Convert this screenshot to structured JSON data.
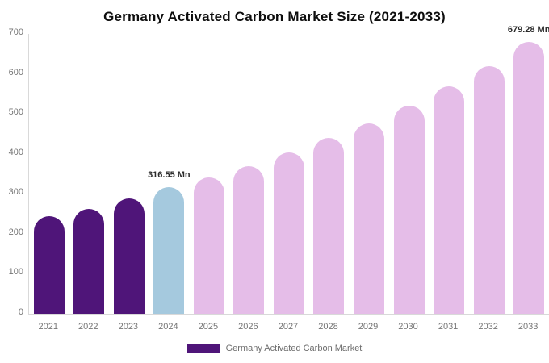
{
  "chart_data": {
    "type": "bar",
    "title": "Germany Activated Carbon Market Size (2021-2033)",
    "unit": "Mn",
    "xlabel": "",
    "ylabel": "",
    "ylim": [
      0,
      700
    ],
    "yticks": [
      0,
      100,
      200,
      300,
      400,
      500,
      600,
      700
    ],
    "grid": false,
    "categories": [
      "2021",
      "2022",
      "2023",
      "2024",
      "2025",
      "2026",
      "2027",
      "2028",
      "2029",
      "2030",
      "2031",
      "2032",
      "2033"
    ],
    "series": [
      {
        "name": "Germany Activated Carbon Market",
        "values": [
          244,
          263,
          288,
          316.55,
          340,
          370,
          404,
          439,
          477,
          521,
          568,
          619,
          679.28
        ]
      }
    ],
    "point_colors": [
      "#4f1579",
      "#4f1579",
      "#4f1579",
      "#a5c9de",
      "#e5bde8",
      "#e5bde8",
      "#e5bde8",
      "#e5bde8",
      "#e5bde8",
      "#e5bde8",
      "#e5bde8",
      "#e5bde8",
      "#e5bde8"
    ],
    "data_labels": [
      null,
      null,
      null,
      "316.55 Mn",
      null,
      null,
      null,
      null,
      null,
      null,
      null,
      null,
      "679.28 Mn"
    ],
    "legend": {
      "position": "bottom",
      "entries": [
        {
          "label": "Germany Activated Carbon Market",
          "color": "#4f1579"
        }
      ]
    },
    "colors": {
      "historical_bar": "#4f1579",
      "current_year_bar": "#a5c9de",
      "forecast_bar": "#e5bde8",
      "axis_line": "#d9d9d9",
      "tick_text": "#757575",
      "title_text": "#0d0d0d",
      "data_label_text": "#2b2b2b"
    }
  }
}
